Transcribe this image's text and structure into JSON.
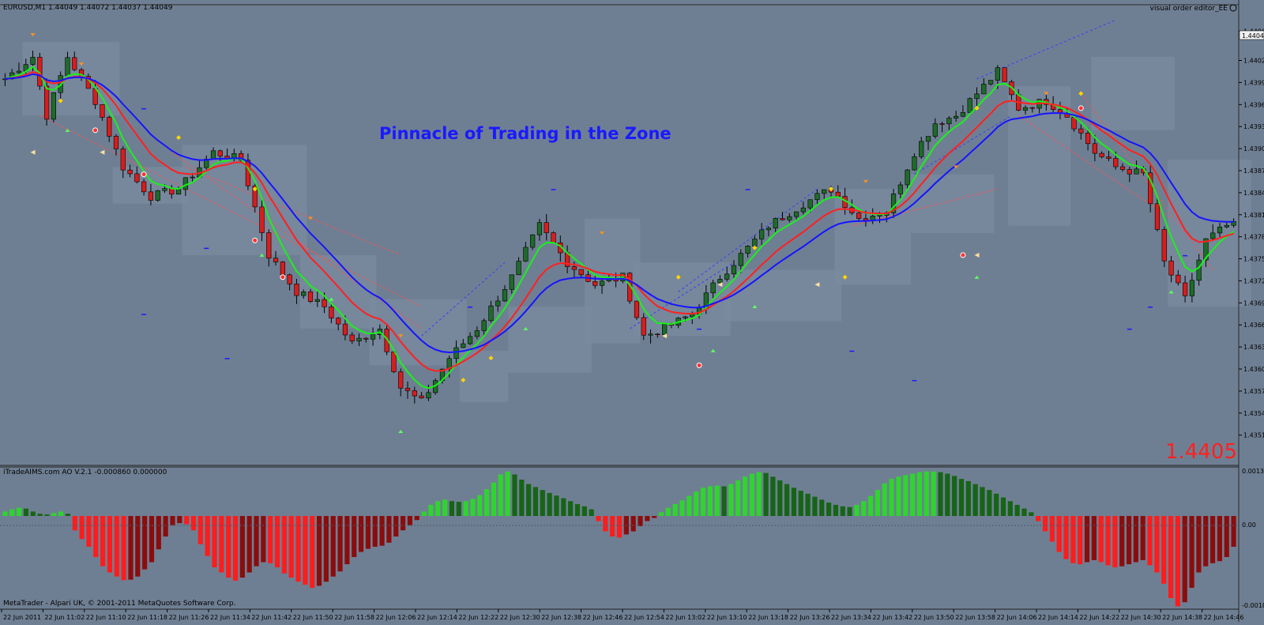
{
  "colors": {
    "background": "#6f7f93",
    "bull_body": "#1f6b2a",
    "bear_body": "#d81d1d",
    "ma_fast": "#19f219",
    "ma_mid": "#ff2020",
    "ma_slow": "#1515ff",
    "ao_up": "#2fd42f",
    "ao_up_dark": "#166416",
    "ao_down": "#ff1c1c",
    "ao_down_dark": "#8a0d0d",
    "title": "#1a1aff",
    "price_big": "#ff2020",
    "zone_box": "#7a8aa0"
  },
  "main": {
    "header": "EURUSD,M1  1.44049 1.44072 1.44037 1.44049",
    "top_right": "visual order editor_EE",
    "title": "Pinnacle of Trading in the Zone",
    "big_price": "1.4405",
    "current_price_tag": "1.44049",
    "price_labels": [
      "1.44065",
      "1.44025",
      "1.43995",
      "1.43965",
      "1.43935",
      "1.43905",
      "1.43875",
      "1.43845",
      "1.43815",
      "1.43785",
      "1.43755",
      "1.43725",
      "1.43695",
      "1.43665",
      "1.43635",
      "1.43605",
      "1.43575",
      "1.43545",
      "1.43515"
    ]
  },
  "sub": {
    "header": "iTradeAIMS.com AO V.2.1 -0.000860 0.000000",
    "scale_top": "0.00130",
    "scale_mid": "0.00",
    "scale_bottom": "-0.0018"
  },
  "footer": {
    "credit": "MetaTrader - Alpari UK, © 2001-2011 MetaQuotes Software Corp."
  },
  "time_labels": [
    "22 Jun 2011",
    "22 Jun 11:02",
    "22 Jun 11:10",
    "22 Jun 11:18",
    "22 Jun 11:26",
    "22 Jun 11:34",
    "22 Jun 11:42",
    "22 Jun 11:50",
    "22 Jun 11:58",
    "22 Jun 12:06",
    "22 Jun 12:14",
    "22 Jun 12:22",
    "22 Jun 12:30",
    "22 Jun 12:38",
    "22 Jun 12:46",
    "22 Jun 12:54",
    "22 Jun 13:02",
    "22 Jun 13:10",
    "22 Jun 13:18",
    "22 Jun 13:26",
    "22 Jun 13:34",
    "22 Jun 13:42",
    "22 Jun 13:50",
    "22 Jun 13:58",
    "22 Jun 14:06",
    "22 Jun 14:14",
    "22 Jun 14:22",
    "22 Jun 14:30",
    "22 Jun 14:38",
    "22 Jun 14:46"
  ],
  "chart_data": {
    "type": "candlestick",
    "symbol": "EURUSD",
    "timeframe": "M1",
    "ylim": [
      1.43505,
      1.44075
    ],
    "ao_ylim": [
      -0.0018,
      0.0013
    ],
    "close_path": [
      [
        0,
        1.44
      ],
      [
        4,
        1.4403
      ],
      [
        6,
        1.4395
      ],
      [
        9,
        1.4403
      ],
      [
        13,
        1.4397
      ],
      [
        17,
        1.4388
      ],
      [
        21,
        1.4384
      ],
      [
        25,
        1.4385
      ],
      [
        30,
        1.439
      ],
      [
        34,
        1.4389
      ],
      [
        38,
        1.4376
      ],
      [
        42,
        1.4371
      ],
      [
        46,
        1.4369
      ],
      [
        50,
        1.4364
      ],
      [
        54,
        1.4366
      ],
      [
        57,
        1.4358
      ],
      [
        60,
        1.4356
      ],
      [
        64,
        1.4362
      ],
      [
        68,
        1.4366
      ],
      [
        73,
        1.4373
      ],
      [
        77,
        1.438
      ],
      [
        81,
        1.4375
      ],
      [
        85,
        1.4372
      ],
      [
        89,
        1.4373
      ],
      [
        92,
        1.4365
      ],
      [
        95,
        1.4366
      ],
      [
        99,
        1.4368
      ],
      [
        103,
        1.4373
      ],
      [
        106,
        1.4376
      ],
      [
        110,
        1.438
      ],
      [
        115,
        1.4383
      ],
      [
        119,
        1.4385
      ],
      [
        123,
        1.4381
      ],
      [
        127,
        1.4382
      ],
      [
        131,
        1.439
      ],
      [
        134,
        1.4394
      ],
      [
        137,
        1.4395
      ],
      [
        140,
        1.4398
      ],
      [
        143,
        1.4401
      ],
      [
        146,
        1.4396
      ],
      [
        150,
        1.4397
      ],
      [
        153,
        1.4395
      ],
      [
        157,
        1.439
      ],
      [
        160,
        1.4388
      ],
      [
        164,
        1.4387
      ],
      [
        167,
        1.4375
      ],
      [
        170,
        1.437
      ],
      [
        173,
        1.4378
      ],
      [
        176,
        1.438
      ]
    ],
    "ao_values": [
      0.00012,
      0.00018,
      0.00022,
      0.0002,
      0.00012,
      6e-05,
      4e-05,
      8e-05,
      0.00012,
      6e-05,
      -0.00028,
      -0.00045,
      -0.0006,
      -0.0008,
      -0.00098,
      -0.0011,
      -0.00118,
      -0.00125,
      -0.00124,
      -0.00118,
      -0.00104,
      -0.0009,
      -0.00065,
      -0.0004,
      -0.00018,
      -0.00014,
      -0.00016,
      -0.00028,
      -0.00055,
      -0.00078,
      -0.001,
      -0.0011,
      -0.0012,
      -0.00126,
      -0.0012,
      -0.0011,
      -0.00098,
      -0.0009,
      -0.00092,
      -0.001,
      -0.00112,
      -0.0012,
      -0.00128,
      -0.00134,
      -0.0014,
      -0.00136,
      -0.00128,
      -0.00118,
      -0.00108,
      -0.00094,
      -0.0008,
      -0.0007,
      -0.00064,
      -0.0006,
      -0.00058,
      -0.00052,
      -0.0004,
      -0.00028,
      -0.00018,
      -8e-05,
      0.00012,
      0.0003,
      0.0004,
      0.00044,
      0.0004,
      0.00038,
      0.0004,
      0.00046,
      0.00056,
      0.00072,
      0.0009,
      0.00112,
      0.0012,
      0.00112,
      0.00098,
      0.00086,
      0.00078,
      0.0007,
      0.00062,
      0.00055,
      0.00048,
      0.0004,
      0.00032,
      0.00026,
      0.00018,
      -0.0001,
      -0.0003,
      -0.0004,
      -0.00042,
      -0.00036,
      -0.0003,
      -0.0002,
      -0.0001,
      -4e-05,
      0.0001,
      0.00022,
      0.00032,
      0.00042,
      0.00054,
      0.00066,
      0.00076,
      0.0008,
      0.00082,
      0.0008,
      0.00086,
      0.00096,
      0.00106,
      0.00114,
      0.00118,
      0.00116,
      0.00106,
      0.00096,
      0.00086,
      0.00076,
      0.00068,
      0.0006,
      0.00052,
      0.00044,
      0.00036,
      0.0003,
      0.00026,
      0.00024,
      0.0003,
      0.0004,
      0.00054,
      0.0007,
      0.00088,
      0.001,
      0.00106,
      0.0011,
      0.00114,
      0.00118,
      0.0012,
      0.0012,
      0.00118,
      0.00114,
      0.00108,
      0.001,
      0.00094,
      0.00086,
      0.00078,
      0.0007,
      0.0006,
      0.0005,
      0.0004,
      0.0003,
      0.0002,
      0.0001,
      -0.0001,
      -0.0003,
      -0.0005,
      -0.0007,
      -0.00084,
      -0.00092,
      -0.00094,
      -0.0009,
      -0.00086,
      -0.0009,
      -0.00096,
      -0.001,
      -0.00098,
      -0.00094,
      -0.0009,
      -0.00086,
      -0.00096,
      -0.0011,
      -0.00132,
      -0.0016,
      -0.00176,
      -0.00168,
      -0.0014,
      -0.0011,
      -0.00098,
      -0.00092,
      -0.00088,
      -0.0008,
      -0.0006
    ]
  }
}
